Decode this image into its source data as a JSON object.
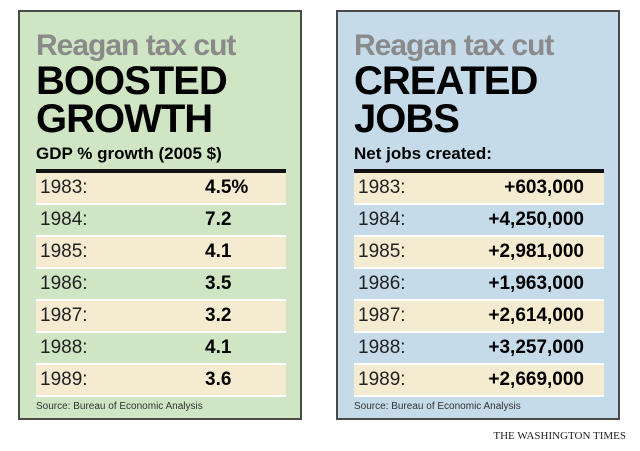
{
  "panels": [
    {
      "kicker": "Reagan tax cut",
      "headline": [
        "BOOSTED",
        "GROWTH"
      ],
      "subhead": "GDP % growth (2005 $)",
      "rows": [
        [
          "1983:",
          "4.5%"
        ],
        [
          "1984:",
          "7.2"
        ],
        [
          "1985:",
          "4.1"
        ],
        [
          "1986:",
          "3.5"
        ],
        [
          "1987:",
          "3.2"
        ],
        [
          "1988:",
          "4.1"
        ],
        [
          "1989:",
          "3.6"
        ]
      ],
      "source": "Source: Bureau of Economic Analysis"
    },
    {
      "kicker": "Reagan tax cut",
      "headline": [
        "CREATED",
        "JOBS"
      ],
      "subhead": "Net jobs created:",
      "rows": [
        [
          "1983:",
          "+603,000"
        ],
        [
          "1984:",
          "+4,250,000"
        ],
        [
          "1985:",
          "+2,981,000"
        ],
        [
          "1986:",
          "+1,963,000"
        ],
        [
          "1987:",
          "+2,614,000"
        ],
        [
          "1988:",
          "+3,257,000"
        ],
        [
          "1989:",
          "+2,669,000"
        ]
      ],
      "source": "Source: Bureau of Economic Analysis"
    }
  ],
  "credit": "THE WASHINGTON TIMES"
}
